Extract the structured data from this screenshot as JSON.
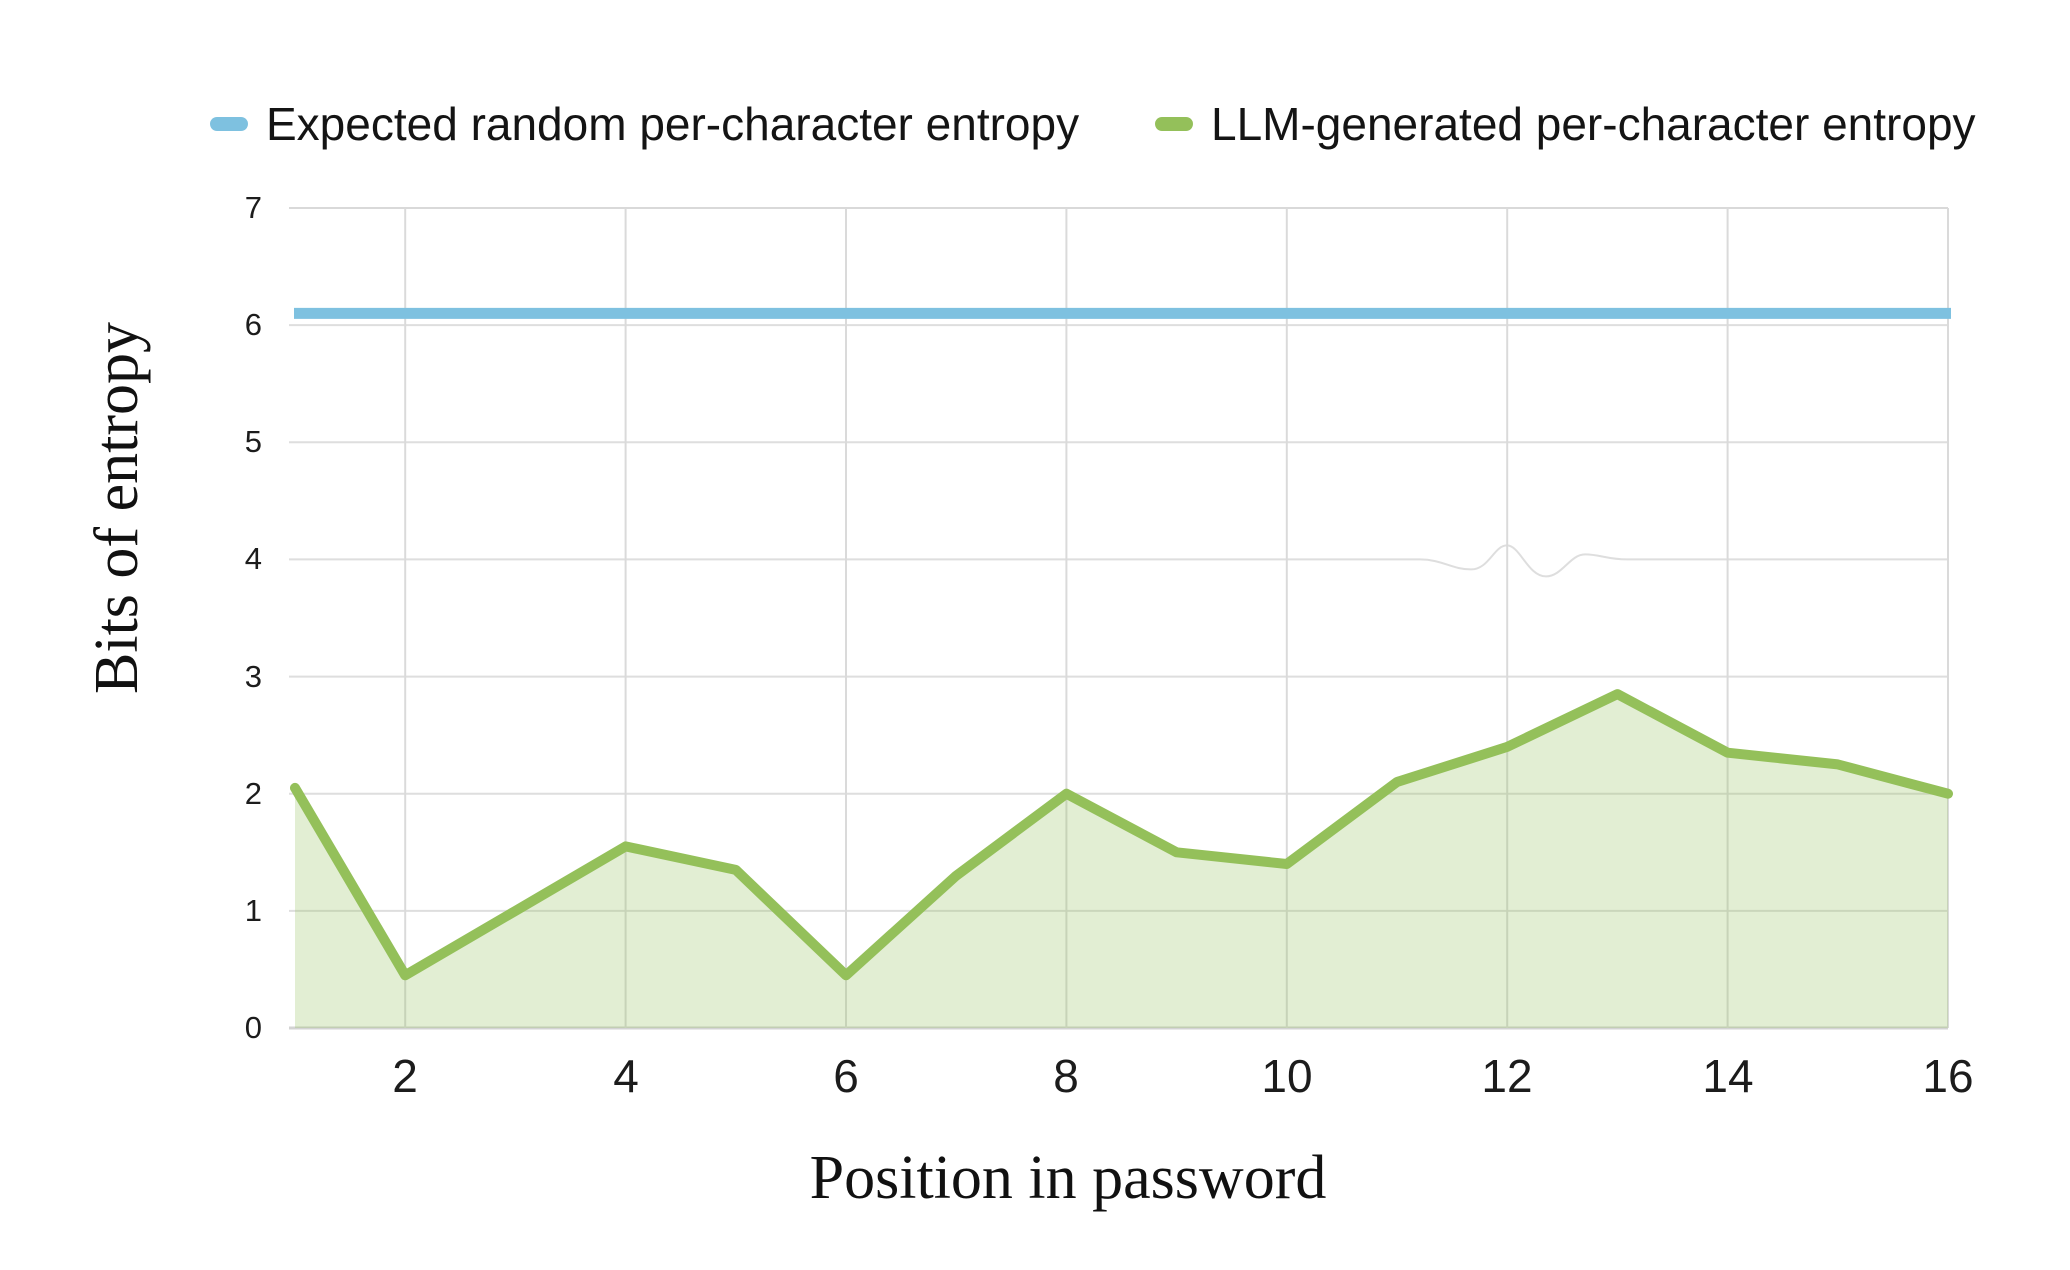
{
  "legend": {
    "items": [
      {
        "label": "Expected random per-character entropy",
        "color": "#7ec1e0"
      },
      {
        "label": "LLM-generated per-character entropy",
        "color": "#94c05a"
      }
    ]
  },
  "axes": {
    "x_title": "Position in password",
    "y_title": "Bits of entropy"
  },
  "chart_data": {
    "type": "line",
    "x": [
      1,
      2,
      3,
      4,
      5,
      6,
      7,
      8,
      9,
      10,
      11,
      12,
      13,
      14,
      15,
      16
    ],
    "series": [
      {
        "name": "Expected random per-character entropy",
        "style": "hline",
        "color": "#7ec1e0",
        "value": 6.1
      },
      {
        "name": "LLM-generated per-character entropy",
        "style": "area",
        "color": "#94c05a",
        "fill": "rgba(148,193,92,0.27)",
        "values": [
          2.05,
          0.45,
          1.0,
          1.55,
          1.35,
          0.45,
          1.3,
          2.0,
          1.5,
          1.4,
          2.1,
          2.4,
          2.85,
          2.35,
          2.25,
          2.0
        ]
      }
    ],
    "title": "",
    "xlabel": "Position in password",
    "ylabel": "Bits of entropy",
    "xlim": [
      1,
      16
    ],
    "ylim": [
      0,
      7
    ],
    "x_ticks": [
      2,
      4,
      6,
      8,
      10,
      12,
      14,
      16
    ],
    "y_ticks": [
      0,
      1,
      2,
      3,
      4,
      5,
      6,
      7
    ],
    "grid": true,
    "legend_position": "top"
  },
  "colors": {
    "grid": "#dedede",
    "grid_top": "#d9d9d9",
    "baseline": "#d3d3d3",
    "text": "#141414",
    "background": "#ffffff"
  }
}
